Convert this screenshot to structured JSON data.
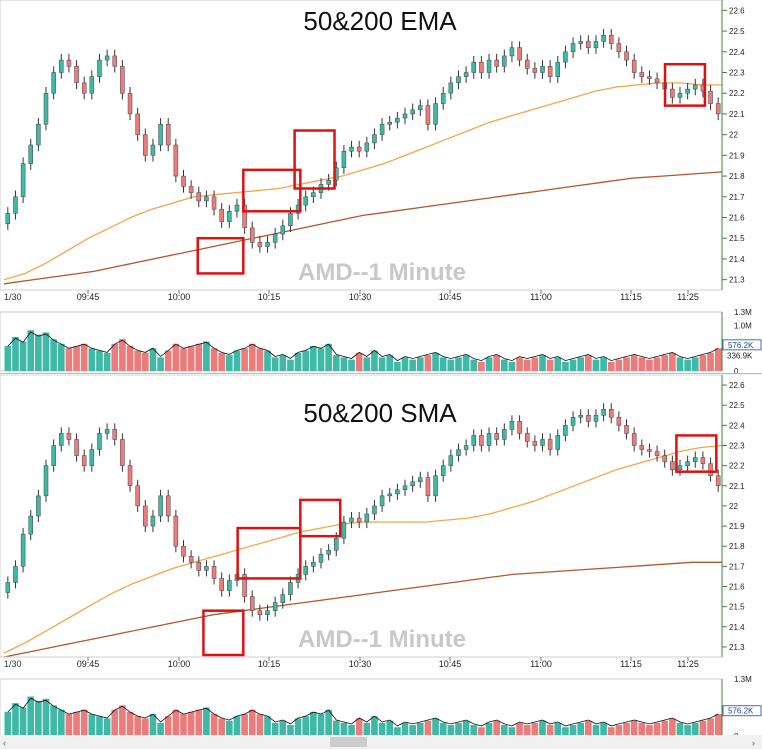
{
  "colors": {
    "up": "#3fb8a6",
    "down": "#ec7b7b",
    "wick": "#333333",
    "ma_fast": "#f5a54a",
    "ma_slow": "#b5552b",
    "box": "#e01010",
    "grid": "#e8e8e8",
    "axis": "#3a8a3a",
    "price_tag": "#1a4aa0"
  },
  "charts": [
    {
      "title": "50&200 EMA",
      "watermark": "AMD--1 Minute",
      "date_label": "1/30",
      "volume_last_label": "576.2K",
      "volume_avg_label": "336.9K"
    },
    {
      "title": "50&200 SMA",
      "watermark": "AMD--1 Minute",
      "date_label": "1/30",
      "volume_last_label": "576.2K",
      "volume_avg_label": ""
    }
  ],
  "chart_data": [
    {
      "type": "candlestick",
      "title": "50&200 EMA",
      "symbol": "AMD--1 Minute",
      "x_ticks": [
        "09:45",
        "10:00",
        "10:15",
        "10:30",
        "10:45",
        "11:00",
        "11:15",
        "11:25"
      ],
      "price_ticks": [
        "22.6",
        "22.5",
        "22.4",
        "22.3",
        "22.2",
        "22.1",
        "22",
        "21.9",
        "21.8",
        "21.7",
        "21.6",
        "21.5",
        "21.4",
        "21.3"
      ],
      "ylim": [
        21.25,
        22.65
      ],
      "volume_ticks": [
        "1.3M",
        "1.0M",
        "0"
      ],
      "close_series": [
        21.62,
        21.7,
        21.86,
        21.95,
        22.05,
        22.2,
        22.3,
        22.36,
        22.33,
        22.25,
        22.2,
        22.28,
        22.36,
        22.38,
        22.33,
        22.2,
        22.1,
        22.0,
        21.9,
        21.95,
        22.05,
        21.95,
        21.8,
        21.75,
        21.72,
        21.68,
        21.7,
        21.64,
        21.58,
        21.63,
        21.66,
        21.55,
        21.48,
        21.46,
        21.48,
        21.52,
        21.56,
        21.62,
        21.66,
        21.7,
        21.72,
        21.76,
        21.78,
        21.84,
        21.92,
        21.94,
        21.92,
        21.96,
        22.0,
        22.05,
        22.06,
        22.08,
        22.1,
        22.12,
        22.14,
        22.05,
        22.15,
        22.2,
        22.25,
        22.28,
        22.3,
        22.35,
        22.3,
        22.36,
        22.33,
        22.38,
        22.42,
        22.36,
        22.32,
        22.3,
        22.33,
        22.28,
        22.35,
        22.4,
        22.44,
        22.45,
        22.42,
        22.45,
        22.48,
        22.44,
        22.4,
        22.36,
        22.3,
        22.28,
        22.27,
        22.25,
        22.22,
        22.18,
        22.2,
        22.22,
        22.24,
        22.21,
        22.15,
        22.1
      ],
      "fast_ma": [
        21.3,
        21.33,
        21.38,
        21.44,
        21.5,
        21.55,
        21.6,
        21.64,
        21.67,
        21.7,
        21.71,
        21.72,
        21.73,
        21.74,
        21.76,
        21.78,
        21.8,
        21.83,
        21.86,
        21.9,
        21.94,
        21.98,
        22.02,
        22.06,
        22.09,
        22.12,
        22.15,
        22.18,
        22.21,
        22.23,
        22.24,
        22.25,
        22.25,
        22.24,
        22.24
      ],
      "slow_ma": [
        21.28,
        21.3,
        21.32,
        21.34,
        21.37,
        21.4,
        21.43,
        21.46,
        21.49,
        21.52,
        21.55,
        21.58,
        21.61,
        21.63,
        21.65,
        21.67,
        21.69,
        21.71,
        21.73,
        21.75,
        21.77,
        21.79,
        21.8,
        21.81,
        21.82
      ],
      "volume": [
        0.55,
        0.75,
        0.65,
        0.9,
        0.8,
        0.85,
        0.7,
        0.6,
        0.5,
        0.55,
        0.6,
        0.5,
        0.45,
        0.4,
        0.6,
        0.7,
        0.55,
        0.45,
        0.4,
        0.5,
        0.3,
        0.45,
        0.6,
        0.5,
        0.55,
        0.6,
        0.65,
        0.5,
        0.4,
        0.35,
        0.45,
        0.5,
        0.6,
        0.5,
        0.45,
        0.3,
        0.35,
        0.25,
        0.4,
        0.45,
        0.55,
        0.5,
        0.6,
        0.35,
        0.3,
        0.25,
        0.4,
        0.3,
        0.45,
        0.3,
        0.35,
        0.2,
        0.3,
        0.25,
        0.3,
        0.35,
        0.4,
        0.3,
        0.25,
        0.3,
        0.35,
        0.25,
        0.2,
        0.3,
        0.35,
        0.25,
        0.2,
        0.3,
        0.25,
        0.3,
        0.35,
        0.25,
        0.3,
        0.2,
        0.25,
        0.3,
        0.35,
        0.25,
        0.3,
        0.2,
        0.25,
        0.3,
        0.35,
        0.3,
        0.25,
        0.3,
        0.35,
        0.4,
        0.3,
        0.25,
        0.3,
        0.35,
        0.4,
        0.5
      ],
      "highlight_boxes": [
        {
          "t0": 34,
          "t1": 42,
          "p0": 21.33,
          "p1": 21.5
        },
        {
          "t0": 42,
          "t1": 52,
          "p0": 21.63,
          "p1": 21.83
        },
        {
          "t0": 51,
          "t1": 58,
          "p0": 21.74,
          "p1": 22.02
        },
        {
          "t0": 116,
          "t1": 123,
          "p0": 22.14,
          "p1": 22.34
        }
      ]
    },
    {
      "type": "candlestick",
      "title": "50&200 SMA",
      "symbol": "AMD--1 Minute",
      "x_ticks": [
        "09:45",
        "10:00",
        "10:15",
        "10:30",
        "10:45",
        "11:00",
        "11:15",
        "11:25"
      ],
      "price_ticks": [
        "22.6",
        "22.5",
        "22.4",
        "22.3",
        "22.2",
        "22.1",
        "22",
        "21.9",
        "21.8",
        "21.7",
        "21.6",
        "21.5",
        "21.4",
        "21.3"
      ],
      "ylim": [
        21.25,
        22.65
      ],
      "volume_ticks": [
        "1.3M",
        "0"
      ],
      "close_series": [
        21.62,
        21.7,
        21.86,
        21.95,
        22.05,
        22.2,
        22.3,
        22.36,
        22.33,
        22.25,
        22.2,
        22.28,
        22.36,
        22.38,
        22.33,
        22.2,
        22.1,
        22.0,
        21.9,
        21.95,
        22.05,
        21.95,
        21.8,
        21.75,
        21.72,
        21.68,
        21.7,
        21.64,
        21.58,
        21.63,
        21.66,
        21.55,
        21.48,
        21.46,
        21.48,
        21.52,
        21.56,
        21.62,
        21.66,
        21.7,
        21.72,
        21.76,
        21.78,
        21.84,
        21.92,
        21.94,
        21.92,
        21.96,
        22.0,
        22.05,
        22.06,
        22.08,
        22.1,
        22.12,
        22.14,
        22.05,
        22.15,
        22.2,
        22.25,
        22.28,
        22.3,
        22.35,
        22.3,
        22.36,
        22.33,
        22.38,
        22.42,
        22.36,
        22.32,
        22.3,
        22.33,
        22.28,
        22.35,
        22.4,
        22.44,
        22.45,
        22.42,
        22.45,
        22.48,
        22.44,
        22.4,
        22.36,
        22.3,
        22.28,
        22.27,
        22.25,
        22.22,
        22.18,
        22.2,
        22.22,
        22.24,
        22.21,
        22.15,
        22.1
      ],
      "fast_ma": [
        21.27,
        21.32,
        21.38,
        21.44,
        21.5,
        21.56,
        21.61,
        21.65,
        21.69,
        21.72,
        21.75,
        21.78,
        21.81,
        21.84,
        21.87,
        21.89,
        21.91,
        21.92,
        21.92,
        21.92,
        21.92,
        21.93,
        21.94,
        21.96,
        21.99,
        22.02,
        22.06,
        22.1,
        22.14,
        22.18,
        22.21,
        22.24,
        22.27,
        22.29,
        22.3
      ],
      "slow_ma": [
        21.25,
        21.28,
        21.31,
        21.34,
        21.37,
        21.4,
        21.43,
        21.46,
        21.48,
        21.5,
        21.52,
        21.54,
        21.56,
        21.58,
        21.6,
        21.62,
        21.64,
        21.66,
        21.67,
        21.68,
        21.69,
        21.7,
        21.71,
        21.72,
        21.72
      ],
      "volume": [
        0.55,
        0.75,
        0.65,
        0.9,
        0.8,
        0.85,
        0.7,
        0.6,
        0.5,
        0.55,
        0.6,
        0.5,
        0.45,
        0.4,
        0.6,
        0.7,
        0.55,
        0.45,
        0.4,
        0.5,
        0.3,
        0.45,
        0.6,
        0.5,
        0.55,
        0.6,
        0.65,
        0.5,
        0.4,
        0.35,
        0.45,
        0.5,
        0.6,
        0.5,
        0.45,
        0.3,
        0.35,
        0.25,
        0.4,
        0.45,
        0.55,
        0.5,
        0.6,
        0.35,
        0.3,
        0.25,
        0.4,
        0.3,
        0.45,
        0.3,
        0.35,
        0.2,
        0.3,
        0.25,
        0.3,
        0.35,
        0.4,
        0.3,
        0.25,
        0.3,
        0.35,
        0.25,
        0.2,
        0.3,
        0.35,
        0.25,
        0.2,
        0.3,
        0.25,
        0.3,
        0.35,
        0.25,
        0.3,
        0.2,
        0.25,
        0.3,
        0.35,
        0.25,
        0.3,
        0.2,
        0.25,
        0.3,
        0.35,
        0.3,
        0.25,
        0.3,
        0.35,
        0.4,
        0.3,
        0.25,
        0.3,
        0.35,
        0.4,
        0.5
      ],
      "highlight_boxes": [
        {
          "t0": 35,
          "t1": 42,
          "p0": 21.26,
          "p1": 21.48
        },
        {
          "t0": 41,
          "t1": 52,
          "p0": 21.64,
          "p1": 21.89
        },
        {
          "t0": 52,
          "t1": 59,
          "p0": 21.85,
          "p1": 22.03
        },
        {
          "t0": 118,
          "t1": 125,
          "p0": 22.17,
          "p1": 22.35
        }
      ]
    }
  ]
}
